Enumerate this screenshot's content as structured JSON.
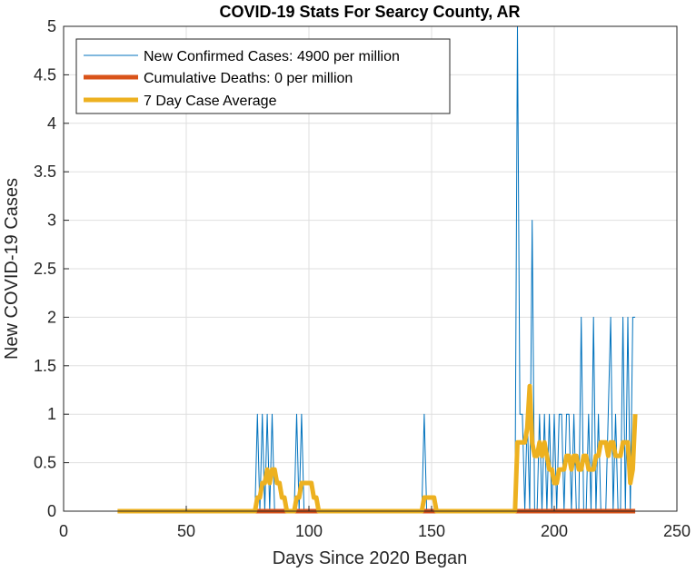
{
  "chart_data": {
    "type": "line",
    "title": "COVID-19 Stats For Searcy County, AR",
    "xlabel": "Days Since 2020 Began",
    "ylabel": "New COVID-19 Cases",
    "xlim": [
      0,
      250
    ],
    "ylim": [
      0,
      5
    ],
    "xticks": [
      0,
      50,
      100,
      150,
      200,
      250
    ],
    "yticks": [
      0,
      0.5,
      1,
      1.5,
      2,
      2.5,
      3,
      3.5,
      4,
      4.5,
      5
    ],
    "xtick_labels": [
      "0",
      "50",
      "100",
      "150",
      "200",
      "250"
    ],
    "ytick_labels": [
      "0",
      "0.5",
      "1",
      "1.5",
      "2",
      "2.5",
      "3",
      "3.5",
      "4",
      "4.5",
      "5"
    ],
    "grid": true,
    "legend_position": "top-left",
    "series": [
      {
        "name": "New Confirmed Cases: 4900 per million",
        "color": "#0072BD",
        "x": [
          22,
          78,
          79,
          80,
          81,
          82,
          83,
          84,
          85,
          86,
          87,
          88,
          89,
          90,
          91,
          92,
          93,
          94,
          95,
          96,
          97,
          98,
          99,
          100,
          146,
          147,
          148,
          184,
          185,
          186,
          187,
          188,
          189,
          190,
          191,
          192,
          193,
          194,
          195,
          196,
          197,
          198,
          199,
          200,
          201,
          202,
          203,
          204,
          205,
          206,
          207,
          208,
          209,
          210,
          211,
          212,
          213,
          214,
          215,
          216,
          217,
          218,
          219,
          220,
          221,
          222,
          223,
          224,
          225,
          226,
          227,
          228,
          229,
          230,
          231,
          232,
          233
        ],
        "y": [
          0,
          0,
          1,
          0,
          1,
          0,
          1,
          0,
          1,
          0,
          0,
          0,
          0,
          0,
          0,
          0,
          0,
          0,
          1,
          0,
          1,
          0,
          0,
          0,
          0,
          1,
          0,
          0,
          5,
          1,
          1,
          0,
          1,
          0,
          3,
          0,
          0,
          1,
          0,
          1,
          0,
          1,
          0,
          1,
          0,
          1,
          1,
          0,
          1,
          1,
          0,
          1,
          0,
          0,
          2,
          0,
          0,
          1,
          0,
          2,
          0,
          1,
          0,
          0,
          0,
          1,
          2,
          0,
          1,
          0,
          0,
          2,
          0,
          2,
          0,
          2,
          2
        ]
      },
      {
        "name": "Cumulative Deaths: 0 per million",
        "color": "#D95319",
        "x": [
          78,
          233
        ],
        "y": [
          0,
          0
        ]
      },
      {
        "name": "7 Day Case Average",
        "color": "#EDB120",
        "x": [
          22,
          78,
          79,
          80,
          81,
          82,
          83,
          84,
          85,
          86,
          87,
          88,
          89,
          90,
          91,
          92,
          93,
          94,
          95,
          96,
          97,
          98,
          99,
          100,
          101,
          102,
          103,
          104,
          145,
          146,
          147,
          148,
          149,
          150,
          151,
          152,
          153,
          154,
          183,
          184,
          185,
          186,
          187,
          188,
          189,
          190,
          191,
          192,
          193,
          194,
          195,
          196,
          197,
          198,
          199,
          200,
          201,
          202,
          203,
          204,
          205,
          206,
          207,
          208,
          209,
          210,
          211,
          212,
          213,
          214,
          215,
          216,
          217,
          218,
          219,
          220,
          221,
          222,
          223,
          224,
          225,
          226,
          227,
          228,
          229,
          230,
          231,
          232,
          233
        ],
        "y": [
          0,
          0,
          0.14,
          0.14,
          0.29,
          0.29,
          0.43,
          0.29,
          0.43,
          0.43,
          0.29,
          0.29,
          0.14,
          0.14,
          0,
          0,
          0,
          0,
          0.14,
          0.14,
          0.29,
          0.29,
          0.29,
          0.29,
          0.29,
          0.14,
          0.14,
          0,
          0,
          0,
          0.14,
          0.14,
          0.14,
          0.14,
          0.14,
          0,
          0,
          0,
          0,
          0,
          0.71,
          0.71,
          0.71,
          0.71,
          0.86,
          1.29,
          0.71,
          0.57,
          0.57,
          0.71,
          0.57,
          0.71,
          0.57,
          0.43,
          0.43,
          0.29,
          0.29,
          0.43,
          0.43,
          0.43,
          0.57,
          0.57,
          0.43,
          0.57,
          0.57,
          0.43,
          0.43,
          0.57,
          0.57,
          0.43,
          0.43,
          0.43,
          0.57,
          0.57,
          0.71,
          0.71,
          0.71,
          0.57,
          0.71,
          0.71,
          0.57,
          0.57,
          0.57,
          0.71,
          0.71,
          0.71,
          0.29,
          0.43,
          1
        ]
      }
    ]
  }
}
